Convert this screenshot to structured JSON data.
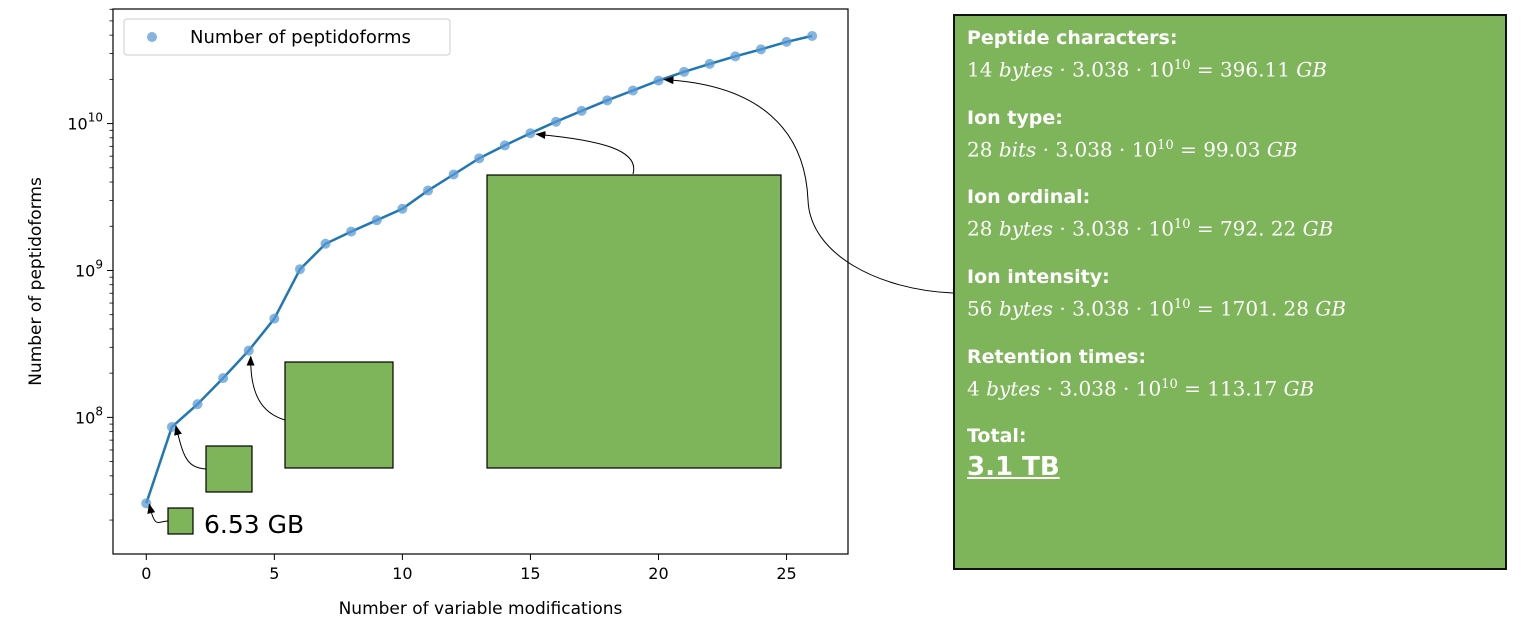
{
  "chart_data": {
    "type": "line",
    "xlabel": "Number of variable modifications",
    "ylabel": "Number of peptidoforms",
    "xlim": [
      -1.3,
      27.4
    ],
    "ylim_log10": [
      7.07,
      10.78
    ],
    "yscale": "log",
    "x_ticks": [
      "0",
      "5",
      "10",
      "15",
      "20",
      "25"
    ],
    "y_ticks": [
      {
        "base": "10",
        "exp": "8"
      },
      {
        "base": "10",
        "exp": "9"
      },
      {
        "base": "10",
        "exp": "10"
      }
    ],
    "legend": {
      "label": "Number of peptidoforms",
      "position": "top-left"
    },
    "series": [
      {
        "name": "Number of peptidoforms",
        "color": "#1f77b4",
        "marker_color": "#5b9bd5",
        "x": [
          0,
          1,
          2,
          3,
          4,
          5,
          6,
          7,
          8,
          9,
          10,
          11,
          12,
          13,
          14,
          15,
          16,
          17,
          18,
          19,
          20,
          21,
          22,
          23,
          24,
          25,
          26
        ],
        "y": [
          26000000.0,
          86000000.0,
          123000000.0,
          185000000.0,
          285000000.0,
          470000000.0,
          1020000000.0,
          1520000000.0,
          1840000000.0,
          2200000000.0,
          2630000000.0,
          3500000000.0,
          4500000000.0,
          5800000000.0,
          7100000000.0,
          8600000000.0,
          10300000000.0,
          12200000000.0,
          14400000000.0,
          16800000000.0,
          19600000000.0,
          22500000000.0,
          25500000000.0,
          28700000000.0,
          32000000000.0,
          36000000000.0,
          39500000000.0
        ]
      }
    ],
    "annotations": [
      {
        "label": "6.53 GB",
        "size_gb": 6.53,
        "points_to_x": 0
      }
    ],
    "boxes": [
      {
        "points_to_x": 1
      },
      {
        "points_to_x": 4
      },
      {
        "points_to_x": 15
      },
      {
        "points_to_x": 20
      }
    ],
    "box_color": "#7eb55a"
  },
  "info_panel": {
    "blocks": [
      {
        "heading": "Peptide characters:",
        "qty": "14",
        "unit": "bytes",
        "factor": "3.038",
        "base": "10",
        "exp": "10",
        "result": "396.11",
        "result_unit": "GB"
      },
      {
        "heading": "Ion type:",
        "qty": "28",
        "unit": "bits",
        "factor": "3.038",
        "base": "10",
        "exp": "10",
        "result": "99.03",
        "result_unit": "GB"
      },
      {
        "heading": "Ion ordinal:",
        "qty": "28",
        "unit": "bytes",
        "factor": "3.038",
        "base": "10",
        "exp": "10",
        "result": "792. 22",
        "result_unit": "GB"
      },
      {
        "heading": "Ion intensity:",
        "qty": "56",
        "unit": "bytes",
        "factor": "3.038",
        "base": "10",
        "exp": "10",
        "result": "1701. 28",
        "result_unit": "GB"
      },
      {
        "heading": "Retention times:",
        "qty": "4",
        "unit": "bytes",
        "factor": "3.038",
        "base": "10",
        "exp": "10",
        "result": "113.17",
        "result_unit": "GB"
      }
    ],
    "total_heading": "Total:",
    "total_value": "3.1 TB"
  }
}
